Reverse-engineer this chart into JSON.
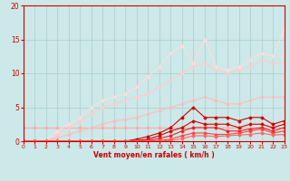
{
  "xlabel": "Vent moyen/en rafales ( km/h )",
  "xlim": [
    0,
    23
  ],
  "ylim": [
    0,
    20
  ],
  "yticks": [
    0,
    5,
    10,
    15,
    20
  ],
  "xticks": [
    0,
    1,
    2,
    3,
    4,
    5,
    6,
    7,
    8,
    9,
    10,
    11,
    12,
    13,
    14,
    15,
    16,
    17,
    18,
    19,
    20,
    21,
    22,
    23
  ],
  "bg_color": "#cce8e8",
  "grid_color": "#aacccc",
  "series": [
    {
      "x": [
        0,
        1,
        2,
        3,
        4,
        5,
        6,
        7,
        8,
        9,
        10,
        11,
        12,
        13,
        14,
        15,
        16,
        17,
        18,
        19,
        20,
        21,
        22,
        23
      ],
      "y": [
        2.0,
        2.0,
        2.0,
        2.0,
        2.0,
        2.0,
        2.0,
        2.0,
        2.0,
        2.0,
        2.0,
        2.0,
        2.0,
        2.0,
        2.0,
        2.0,
        2.0,
        2.0,
        2.0,
        2.0,
        2.0,
        2.0,
        2.0,
        2.0
      ],
      "color": "#ffaaaa",
      "lw": 0.8,
      "marker": "D",
      "ms": 1.5
    },
    {
      "x": [
        0,
        1,
        2,
        3,
        4,
        5,
        6,
        7,
        8,
        9,
        10,
        11,
        12,
        13,
        14,
        15,
        16,
        17,
        18,
        19,
        20,
        21,
        22,
        23
      ],
      "y": [
        0.0,
        0.0,
        0.0,
        0.5,
        1.0,
        1.5,
        2.0,
        2.5,
        3.0,
        3.2,
        3.5,
        4.0,
        4.5,
        5.0,
        5.5,
        6.0,
        6.5,
        6.0,
        5.5,
        5.5,
        6.0,
        6.5,
        6.5,
        6.5
      ],
      "color": "#ffbbbb",
      "lw": 0.8,
      "marker": "D",
      "ms": 1.5
    },
    {
      "x": [
        0,
        1,
        2,
        3,
        4,
        5,
        6,
        7,
        8,
        9,
        10,
        11,
        12,
        13,
        14,
        15,
        16,
        17,
        18,
        19,
        20,
        21,
        22,
        23
      ],
      "y": [
        0.0,
        0.0,
        0.0,
        1.0,
        2.0,
        3.0,
        4.0,
        5.0,
        5.5,
        6.0,
        6.5,
        7.0,
        8.0,
        9.0,
        10.0,
        11.0,
        11.5,
        10.5,
        10.0,
        10.5,
        11.0,
        12.0,
        11.5,
        11.5
      ],
      "color": "#ffcccc",
      "lw": 0.8,
      "marker": "D",
      "ms": 1.5
    },
    {
      "x": [
        0,
        1,
        2,
        3,
        4,
        5,
        6,
        7,
        8,
        9,
        10,
        11,
        12,
        13,
        14,
        15,
        16,
        17,
        18,
        19,
        20,
        21,
        22,
        23
      ],
      "y": [
        0.0,
        0.0,
        0.0,
        1.5,
        2.5,
        3.5,
        5.0,
        6.0,
        6.5,
        7.0,
        8.0,
        9.5,
        11.0,
        13.0,
        14.0,
        11.5,
        15.0,
        11.0,
        10.5,
        11.0,
        12.0,
        13.0,
        12.5,
        16.5
      ],
      "color": "#ffdddd",
      "lw": 0.8,
      "marker": "D",
      "ms": 1.5
    },
    {
      "x": [
        0,
        1,
        2,
        3,
        4,
        5,
        6,
        7,
        8,
        9,
        10,
        11,
        12,
        13,
        14,
        15,
        16,
        17,
        18,
        19,
        20,
        21,
        22,
        23
      ],
      "y": [
        0.0,
        0.0,
        0.0,
        0.0,
        0.0,
        0.0,
        0.0,
        0.0,
        0.0,
        0.0,
        0.3,
        0.7,
        1.2,
        2.0,
        3.5,
        5.0,
        3.5,
        3.5,
        3.5,
        3.0,
        3.5,
        3.5,
        2.5,
        3.0
      ],
      "color": "#cc0000",
      "lw": 0.8,
      "marker": "D",
      "ms": 1.5
    },
    {
      "x": [
        0,
        1,
        2,
        3,
        4,
        5,
        6,
        7,
        8,
        9,
        10,
        11,
        12,
        13,
        14,
        15,
        16,
        17,
        18,
        19,
        20,
        21,
        22,
        23
      ],
      "y": [
        0.0,
        0.0,
        0.0,
        0.0,
        0.0,
        0.0,
        0.0,
        0.0,
        0.0,
        0.0,
        0.1,
        0.3,
        0.8,
        1.5,
        2.0,
        3.0,
        2.5,
        2.5,
        2.5,
        2.0,
        2.5,
        2.5,
        2.0,
        2.5
      ],
      "color": "#dd0000",
      "lw": 0.8,
      "marker": "D",
      "ms": 1.5
    },
    {
      "x": [
        0,
        1,
        2,
        3,
        4,
        5,
        6,
        7,
        8,
        9,
        10,
        11,
        12,
        13,
        14,
        15,
        16,
        17,
        18,
        19,
        20,
        21,
        22,
        23
      ],
      "y": [
        0.0,
        0.0,
        0.0,
        0.0,
        0.0,
        0.0,
        0.0,
        0.0,
        0.0,
        0.0,
        0.0,
        0.1,
        0.4,
        0.8,
        1.5,
        2.0,
        2.0,
        2.0,
        1.5,
        1.5,
        1.8,
        2.0,
        1.5,
        2.0
      ],
      "color": "#ee2222",
      "lw": 0.8,
      "marker": "D",
      "ms": 1.5
    },
    {
      "x": [
        0,
        1,
        2,
        3,
        4,
        5,
        6,
        7,
        8,
        9,
        10,
        11,
        12,
        13,
        14,
        15,
        16,
        17,
        18,
        19,
        20,
        21,
        22,
        23
      ],
      "y": [
        0.0,
        0.0,
        0.0,
        0.0,
        0.0,
        0.0,
        0.0,
        0.0,
        0.0,
        0.0,
        0.0,
        0.0,
        0.1,
        0.3,
        0.8,
        1.2,
        1.2,
        1.0,
        1.0,
        1.2,
        1.5,
        1.8,
        1.2,
        1.5
      ],
      "color": "#ff4444",
      "lw": 0.8,
      "marker": "D",
      "ms": 1.5
    },
    {
      "x": [
        0,
        1,
        2,
        3,
        4,
        5,
        6,
        7,
        8,
        9,
        10,
        11,
        12,
        13,
        14,
        15,
        16,
        17,
        18,
        19,
        20,
        21,
        22,
        23
      ],
      "y": [
        0.0,
        0.0,
        0.0,
        0.0,
        0.0,
        0.0,
        0.0,
        0.0,
        0.0,
        0.0,
        0.0,
        0.0,
        0.0,
        0.1,
        0.4,
        0.8,
        0.8,
        0.7,
        0.8,
        0.9,
        1.0,
        1.2,
        0.9,
        1.0
      ],
      "color": "#ff6666",
      "lw": 0.8,
      "marker": "D",
      "ms": 1.5
    }
  ]
}
